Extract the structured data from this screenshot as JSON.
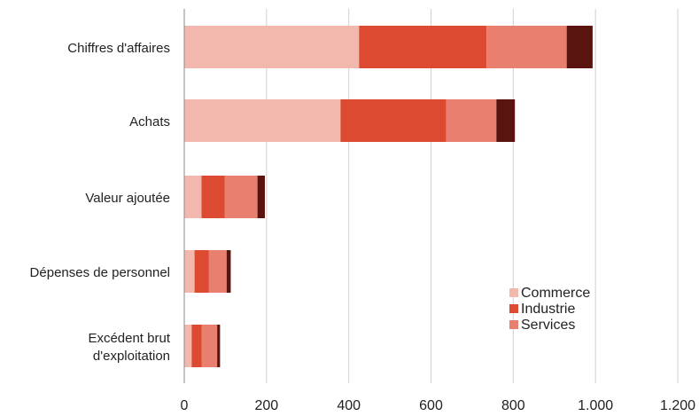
{
  "chart_data": {
    "type": "bar",
    "orientation": "horizontal",
    "stacked": true,
    "categories": [
      "Chiffres d'affaires",
      "Achats",
      "Valeur ajoutée",
      "Dépenses de personnel",
      "Excédent brut d'exploitation"
    ],
    "category_lines": [
      [
        "Chiffres d'affaires"
      ],
      [
        "Achats"
      ],
      [
        "Valeur ajoutée"
      ],
      [
        "Dépenses de personnel"
      ],
      [
        "Excédent brut",
        "d'exploitation"
      ]
    ],
    "series": [
      {
        "name": "Commerce",
        "color": "#f2b8ae",
        "values": [
          425,
          380,
          42,
          25,
          18
        ]
      },
      {
        "name": "Industrie",
        "color": "#dc4a32",
        "values": [
          310,
          257,
          56,
          35,
          24
        ]
      },
      {
        "name": "Services",
        "color": "#e97f6e",
        "values": [
          195,
          122,
          80,
          43,
          38
        ]
      },
      {
        "name": "",
        "color": "#5a1410",
        "values": [
          63,
          45,
          18,
          10,
          7
        ]
      }
    ],
    "xlim": [
      0,
      1200
    ],
    "x_ticks": [
      0,
      200,
      400,
      600,
      800,
      1000,
      1200
    ],
    "x_tick_labels": [
      "0",
      "200",
      "400",
      "600",
      "800",
      "1.000",
      "1.200"
    ],
    "grid": "vertical",
    "legend_position": "bottom-right",
    "title": "",
    "xlabel": "",
    "ylabel": ""
  }
}
